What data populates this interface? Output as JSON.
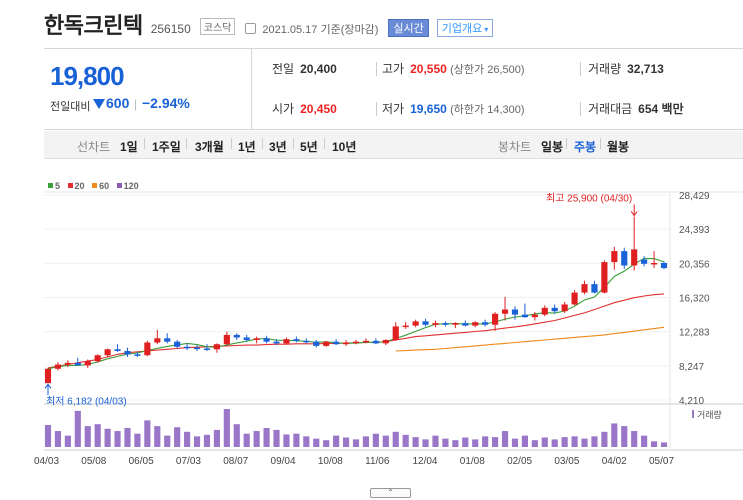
{
  "header": {
    "company": "한독크린텍",
    "code": "256150",
    "market_badge": "코스닥",
    "basis": "2021.05.17 기준(장마감)",
    "realtime_button": "실시간",
    "company_info_button": "기업개요"
  },
  "price": {
    "current": "19,800",
    "change_label": "전일대비",
    "change_amount": "600",
    "separator": "|",
    "change_rate": "−2.94%"
  },
  "quote": {
    "prev_close_label": "전일",
    "prev_close": "20,400",
    "high_label": "고가",
    "high": "20,550",
    "upper_limit": "(상한가 26,500)",
    "volume_label": "거래량",
    "volume": "32,713",
    "open_label": "시가",
    "open": "20,450",
    "low_label": "저가",
    "low": "19,650",
    "lower_limit": "(하한가 14,300)",
    "amount_label": "거래대금",
    "amount": "654 백만"
  },
  "tabs": {
    "line_label": "선차트",
    "line_items": [
      "1일",
      "1주일",
      "3개월",
      "1년",
      "3년",
      "5년",
      "10년"
    ],
    "candle_label": "봉차트",
    "candle_items": [
      "일봉",
      "주봉",
      "월봉"
    ],
    "selected": "주봉"
  },
  "legend": [
    {
      "label": "5",
      "color": "#3aa03a"
    },
    {
      "label": "20",
      "color": "#e03030"
    },
    {
      "label": "60",
      "color": "#ee8a1a"
    },
    {
      "label": "120",
      "color": "#8a5ab4"
    }
  ],
  "footer": {
    "collapse_icon": "chevron-up-icon"
  },
  "chart_data": {
    "type": "candlestick",
    "price_axis": {
      "ylim": [
        4210,
        28429
      ],
      "ticks": [
        "28,429",
        "24,393",
        "20,356",
        "16,320",
        "12,283",
        "8,247",
        "4,210"
      ]
    },
    "annotations": {
      "high": "최고 25,900 (04/30)",
      "low": "최저 6,182 (04/03)"
    },
    "volume_label": "거래량",
    "x_tick_labels": [
      "04/03",
      "05/08",
      "06/05",
      "07/03",
      "08/07",
      "09/04",
      "10/08",
      "11/06",
      "12/04",
      "01/08",
      "02/05",
      "03/05",
      "04/02",
      "05/07"
    ],
    "up_color": "#e02020",
    "down_color": "#1a62d8",
    "volume_color": "#9a76c8",
    "candles": [
      {
        "o": 6200,
        "h": 8000,
        "l": 6182,
        "c": 7900
      },
      {
        "o": 7900,
        "h": 8700,
        "l": 7700,
        "c": 8400
      },
      {
        "o": 8400,
        "h": 8900,
        "l": 8100,
        "c": 8600
      },
      {
        "o": 8600,
        "h": 9200,
        "l": 8300,
        "c": 8300
      },
      {
        "o": 8300,
        "h": 9000,
        "l": 8000,
        "c": 8800
      },
      {
        "o": 8800,
        "h": 9600,
        "l": 8600,
        "c": 9500
      },
      {
        "o": 9500,
        "h": 10300,
        "l": 9300,
        "c": 10200
      },
      {
        "o": 10200,
        "h": 10800,
        "l": 9900,
        "c": 10000
      },
      {
        "o": 10000,
        "h": 10400,
        "l": 9300,
        "c": 9600
      },
      {
        "o": 9600,
        "h": 9900,
        "l": 9300,
        "c": 9500
      },
      {
        "o": 9500,
        "h": 11200,
        "l": 9400,
        "c": 11000
      },
      {
        "o": 11000,
        "h": 12500,
        "l": 10800,
        "c": 11500
      },
      {
        "o": 11500,
        "h": 12100,
        "l": 10900,
        "c": 11100
      },
      {
        "o": 11100,
        "h": 11300,
        "l": 10300,
        "c": 10500
      },
      {
        "o": 10500,
        "h": 10900,
        "l": 10100,
        "c": 10400
      },
      {
        "o": 10400,
        "h": 10700,
        "l": 10000,
        "c": 10300
      },
      {
        "o": 10300,
        "h": 10800,
        "l": 10000,
        "c": 10200
      },
      {
        "o": 10200,
        "h": 10900,
        "l": 9800,
        "c": 10800
      },
      {
        "o": 10800,
        "h": 12300,
        "l": 10700,
        "c": 11900
      },
      {
        "o": 11900,
        "h": 12100,
        "l": 11300,
        "c": 11600
      },
      {
        "o": 11600,
        "h": 11900,
        "l": 11100,
        "c": 11300
      },
      {
        "o": 11300,
        "h": 11700,
        "l": 10900,
        "c": 11500
      },
      {
        "o": 11500,
        "h": 11800,
        "l": 10900,
        "c": 11100
      },
      {
        "o": 11100,
        "h": 11400,
        "l": 10700,
        "c": 10900
      },
      {
        "o": 10900,
        "h": 11600,
        "l": 10800,
        "c": 11400
      },
      {
        "o": 11400,
        "h": 11700,
        "l": 11000,
        "c": 11200
      },
      {
        "o": 11200,
        "h": 11500,
        "l": 10900,
        "c": 11100
      },
      {
        "o": 11100,
        "h": 11300,
        "l": 10400,
        "c": 10600
      },
      {
        "o": 10600,
        "h": 11200,
        "l": 10500,
        "c": 11100
      },
      {
        "o": 11100,
        "h": 11400,
        "l": 10700,
        "c": 10800
      },
      {
        "o": 10800,
        "h": 11300,
        "l": 10600,
        "c": 11000
      },
      {
        "o": 11000,
        "h": 11300,
        "l": 10800,
        "c": 11100
      },
      {
        "o": 11100,
        "h": 11500,
        "l": 10900,
        "c": 11200
      },
      {
        "o": 11200,
        "h": 11500,
        "l": 10800,
        "c": 10900
      },
      {
        "o": 10900,
        "h": 11400,
        "l": 10700,
        "c": 11300
      },
      {
        "o": 11300,
        "h": 13400,
        "l": 11200,
        "c": 12900
      },
      {
        "o": 12900,
        "h": 13400,
        "l": 12600,
        "c": 13000
      },
      {
        "o": 13000,
        "h": 13700,
        "l": 12800,
        "c": 13500
      },
      {
        "o": 13500,
        "h": 13800,
        "l": 12900,
        "c": 13100
      },
      {
        "o": 13100,
        "h": 13600,
        "l": 12800,
        "c": 13300
      },
      {
        "o": 13300,
        "h": 13500,
        "l": 12900,
        "c": 13100
      },
      {
        "o": 13100,
        "h": 13400,
        "l": 12700,
        "c": 13300
      },
      {
        "o": 13300,
        "h": 13600,
        "l": 12900,
        "c": 13000
      },
      {
        "o": 13000,
        "h": 13500,
        "l": 12800,
        "c": 13400
      },
      {
        "o": 13400,
        "h": 13700,
        "l": 12900,
        "c": 13100
      },
      {
        "o": 13100,
        "h": 14600,
        "l": 12400,
        "c": 14400
      },
      {
        "o": 14400,
        "h": 16400,
        "l": 13600,
        "c": 14900
      },
      {
        "o": 14900,
        "h": 15300,
        "l": 13700,
        "c": 14300
      },
      {
        "o": 14300,
        "h": 15600,
        "l": 13900,
        "c": 14000
      },
      {
        "o": 14000,
        "h": 14600,
        "l": 13600,
        "c": 14300
      },
      {
        "o": 14300,
        "h": 15400,
        "l": 14100,
        "c": 15100
      },
      {
        "o": 15100,
        "h": 15500,
        "l": 14400,
        "c": 14700
      },
      {
        "o": 14700,
        "h": 15800,
        "l": 14500,
        "c": 15500
      },
      {
        "o": 15500,
        "h": 17200,
        "l": 15400,
        "c": 16900
      },
      {
        "o": 16900,
        "h": 18300,
        "l": 16700,
        "c": 17900
      },
      {
        "o": 17900,
        "h": 18300,
        "l": 16800,
        "c": 16900
      },
      {
        "o": 16900,
        "h": 20700,
        "l": 16800,
        "c": 20500
      },
      {
        "o": 20500,
        "h": 22300,
        "l": 19600,
        "c": 21800
      },
      {
        "o": 21800,
        "h": 22200,
        "l": 19700,
        "c": 20100
      },
      {
        "o": 20100,
        "h": 25900,
        "l": 19500,
        "c": 22000
      },
      {
        "o": 20800,
        "h": 21200,
        "l": 20000,
        "c": 20300
      },
      {
        "o": 20300,
        "h": 21800,
        "l": 19800,
        "c": 20400
      },
      {
        "o": 20400,
        "h": 20550,
        "l": 19650,
        "c": 19800
      }
    ],
    "volume": [
      58,
      42,
      30,
      95,
      55,
      60,
      48,
      42,
      50,
      35,
      70,
      55,
      30,
      52,
      40,
      28,
      32,
      45,
      100,
      60,
      35,
      42,
      50,
      45,
      33,
      35,
      28,
      22,
      18,
      30,
      25,
      20,
      28,
      35,
      30,
      40,
      32,
      26,
      20,
      30,
      22,
      18,
      25,
      20,
      28,
      26,
      42,
      22,
      30,
      18,
      25,
      20,
      26,
      28,
      22,
      28,
      40,
      62,
      55,
      42,
      30,
      15,
      12
    ],
    "ma20": [
      8000,
      8200,
      8400,
      8600,
      8800,
      9000,
      9300,
      9600,
      9800,
      9900,
      10000,
      10100,
      10200,
      10300,
      10400,
      10450,
      10500,
      10550,
      10600,
      10650,
      10700,
      10700,
      10750,
      10800,
      10800,
      10850,
      10850,
      10850,
      10900,
      10900,
      10950,
      10950,
      11000,
      11000,
      11100,
      11300,
      11500,
      11700,
      11800,
      11900,
      12000,
      12100,
      12200,
      12300,
      12400,
      12550,
      12700,
      12850,
      13000,
      13200,
      13400,
      13600,
      13900,
      14200,
      14500,
      14900,
      15300,
      15700,
      16000,
      16300,
      16500,
      16650,
      16750
    ],
    "ma60": [
      null,
      null,
      null,
      null,
      null,
      null,
      null,
      null,
      null,
      null,
      null,
      null,
      null,
      null,
      null,
      null,
      null,
      null,
      null,
      null,
      null,
      null,
      null,
      null,
      null,
      null,
      null,
      null,
      null,
      null,
      null,
      null,
      null,
      null,
      null,
      10000,
      10050,
      10100,
      10150,
      10200,
      10300,
      10400,
      10500,
      10600,
      10700,
      10800,
      10900,
      11000,
      11100,
      11200,
      11300,
      11400,
      11500,
      11600,
      11700,
      11800,
      11900,
      12050,
      12200,
      12350,
      12500,
      12650,
      12800
    ]
  }
}
